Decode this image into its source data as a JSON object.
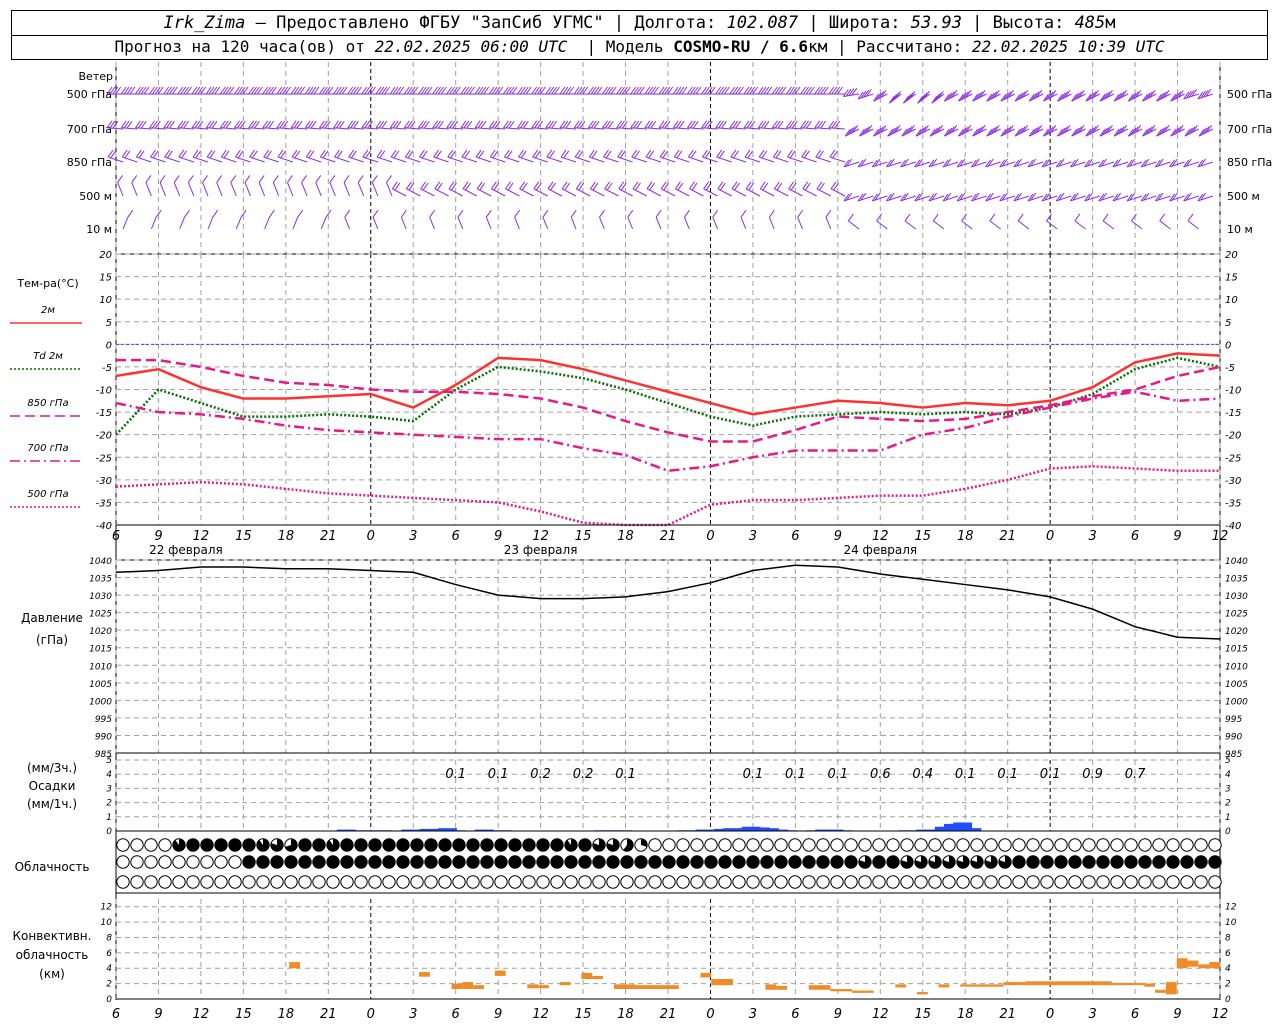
{
  "header": {
    "station": "Irk_Zima",
    "provider": "– Предоставлено ФГБУ \"ЗапСиб УГМС\"",
    "lon_label": "Долгота:",
    "lon_value": "102.087",
    "lat_label": "Широта:",
    "lat_value": "53.93",
    "alt_label": "Высота:",
    "alt_value": "485",
    "alt_unit": "м",
    "forecast_label": "Прогноз на 120 часа(ов) от",
    "forecast_start": "22.02.2025 06:00 UTC",
    "model_label": "Модель",
    "model_name": "COSMO-RU / 6.6",
    "model_unit": "км",
    "calc_label": "Рассчитано:",
    "calc_time": "22.02.2025 10:39 UTC"
  },
  "colors": {
    "wind": "#8a2be2",
    "t2m": "#ff3030",
    "td2m": "#007000",
    "t850": "#e6198a",
    "t700": "#e6198a",
    "t500": "#e6198a",
    "pressure": "#000000",
    "precip_bar": "#1f4fff",
    "conv_bar": "#f08c28",
    "grid": "#a0a0a0",
    "zero_line": "#4040ff"
  },
  "hour_ticks": [
    "6",
    "9",
    "12",
    "15",
    "18",
    "21",
    "0",
    "3",
    "6",
    "9",
    "12",
    "15",
    "18",
    "21",
    "0",
    "3",
    "6",
    "9",
    "12",
    "15",
    "18",
    "21",
    "0",
    "3",
    "6",
    "9",
    "12"
  ],
  "day_labels": [
    "22 февраля",
    "23 февраля",
    "24 февраля"
  ],
  "wind_panel": {
    "title": "Ветер",
    "levels": [
      "500 гПа",
      "700 гПа",
      "850 гПа",
      "500 м",
      "10 м"
    ]
  },
  "temp_panel": {
    "title": "Тем-ра(°C)",
    "legend": [
      {
        "label": "2м",
        "key": "t2m"
      },
      {
        "label": "Td 2м",
        "key": "td2m"
      },
      {
        "label": "850 гПа",
        "key": "t850"
      },
      {
        "label": "700 гПа",
        "key": "t700"
      },
      {
        "label": "500 гПа",
        "key": "t500"
      }
    ],
    "yticks": [
      "20",
      "15",
      "10",
      "5",
      "0",
      "-5",
      "-10",
      "-15",
      "-20",
      "-25",
      "-30",
      "-35",
      "-40"
    ]
  },
  "pressure_panel": {
    "title1": "Давление",
    "title2": "(гПа)",
    "yticks": [
      "1040",
      "1035",
      "1030",
      "1025",
      "1020",
      "1015",
      "1010",
      "1005",
      "1000",
      "995",
      "990",
      "985"
    ]
  },
  "precip_panel": {
    "title1": "(мм/3ч.)",
    "title2": "Осадки",
    "title3": "(мм/1ч.)",
    "yticks": [
      "5",
      "4",
      "3",
      "2",
      "1",
      "0"
    ]
  },
  "cloud_panel": {
    "title": "Облачность"
  },
  "conv_panel": {
    "title1": "Конвективн.",
    "title2": "облачность",
    "title3": "(км)",
    "yticks": [
      "12",
      "10",
      "8",
      "6",
      "4",
      "2",
      "0"
    ]
  },
  "chart_data": {
    "type": "line",
    "x_hours": [
      0,
      3,
      6,
      9,
      12,
      15,
      18,
      21,
      24,
      27,
      30,
      33,
      36,
      39,
      42,
      45,
      48,
      51,
      54,
      57,
      60,
      63,
      66,
      69,
      72,
      75,
      78
    ],
    "temperature": {
      "ylim": [
        -40,
        20
      ],
      "series": [
        {
          "name": "2м",
          "key": "t2m",
          "values": [
            -7,
            -5.5,
            -9.5,
            -12,
            -12,
            -11.5,
            -11,
            -14,
            -9,
            -3,
            -3.5,
            -5.5,
            -8,
            -10.5,
            -13,
            -15.5,
            -14,
            -12.5,
            -13,
            -14,
            -13,
            -13.5,
            -12.5,
            -9.5,
            -4,
            -2,
            -2.5
          ]
        },
        {
          "name": "Td 2м",
          "key": "td2m",
          "values": [
            -20,
            -10,
            -13,
            -16,
            -16,
            -15.5,
            -16,
            -17,
            -10,
            -5,
            -6,
            -7.5,
            -10,
            -13,
            -16,
            -18,
            -16,
            -15.5,
            -15,
            -15.5,
            -15,
            -15.5,
            -14,
            -11,
            -5.5,
            -3,
            -5
          ]
        },
        {
          "name": "850 гПа",
          "key": "t850",
          "values": [
            -3.5,
            -3.5,
            -5,
            -7,
            -8.5,
            -9,
            -10,
            -10.5,
            -10.5,
            -11,
            -12,
            -14,
            -17,
            -19.5,
            -21.5,
            -21.5,
            -19,
            -16,
            -16.5,
            -17,
            -16.5,
            -15,
            -13.5,
            -11.5,
            -10,
            -7,
            -5
          ]
        },
        {
          "name": "700 гПа",
          "key": "t700",
          "values": [
            -13,
            -15,
            -15.5,
            -16.5,
            -18,
            -19,
            -19.5,
            -20,
            -20.5,
            -21,
            -21,
            -23,
            -24.5,
            -28,
            -27,
            -25,
            -23.5,
            -23.5,
            -23.5,
            -20,
            -18.5,
            -16,
            -14,
            -12,
            -10.5,
            -12.5,
            -12
          ]
        },
        {
          "name": "500 гПа",
          "key": "t500",
          "values": [
            -31.5,
            -31,
            -30.5,
            -31,
            -32,
            -33,
            -33.5,
            -34,
            -34.5,
            -35,
            -37,
            -39.5,
            -41,
            -40,
            -35.5,
            -34.5,
            -34.5,
            -34,
            -33.5,
            -33.5,
            -32,
            -30,
            -27.5,
            -27,
            -27.5,
            -28,
            -28
          ]
        }
      ]
    },
    "pressure": {
      "ylim": [
        985,
        1040
      ],
      "series": [
        {
          "name": "Давление",
          "values": [
            1036.5,
            1037,
            1038,
            1038,
            1037.5,
            1037.5,
            1037,
            1036.5,
            1033,
            1030,
            1029,
            1029,
            1029.5,
            1031,
            1033.5,
            1037,
            1038.5,
            1038,
            1036,
            1034.5,
            1033,
            1031.5,
            1029.5,
            1026,
            1021,
            1018,
            1017.5
          ]
        }
      ]
    },
    "precip_3h_labels": [
      {
        "hour": 24,
        "value": "0.1"
      },
      {
        "hour": 27,
        "value": "0.1"
      },
      {
        "hour": 30,
        "value": "0.2"
      },
      {
        "hour": 33,
        "value": "0.2"
      },
      {
        "hour": 36,
        "value": "0.1"
      },
      {
        "hour": 45,
        "value": "0.1"
      },
      {
        "hour": 48,
        "value": "0.1"
      },
      {
        "hour": 51,
        "value": "0.1"
      },
      {
        "hour": 54,
        "value": "0.6"
      },
      {
        "hour": 57,
        "value": "0.4"
      },
      {
        "hour": 60,
        "value": "0.1"
      },
      {
        "hour": 63,
        "value": "0.1"
      },
      {
        "hour": 66,
        "value": "0.1"
      },
      {
        "hour": 69,
        "value": "0.9"
      },
      {
        "hour": 72,
        "value": "0.7"
      }
    ],
    "precip_1h": {
      "ylim": [
        0,
        5
      ],
      "values": [
        0,
        0,
        0,
        0,
        0,
        0,
        0,
        0,
        0,
        0,
        0,
        0,
        0,
        0,
        0,
        0,
        0,
        0,
        0,
        0,
        0,
        0,
        0,
        0,
        0.1,
        0.1,
        0.05,
        0.05,
        0.05,
        0.05,
        0,
        0.1,
        0.1,
        0.15,
        0.15,
        0.2,
        0.2,
        0.05,
        0,
        0.1,
        0.1,
        0.05,
        0.05,
        0,
        0,
        0,
        0,
        0,
        0,
        0,
        0,
        0,
        0.05,
        0.05,
        0.05,
        0.05,
        0,
        0,
        0,
        0,
        0,
        0.05,
        0.05,
        0.1,
        0.1,
        0.15,
        0.2,
        0.2,
        0.3,
        0.3,
        0.25,
        0.2,
        0.1,
        0.05,
        0,
        0.05,
        0.1,
        0.1,
        0.1,
        0.05,
        0,
        0,
        0,
        0,
        0,
        0.05,
        0.05,
        0.1,
        0.1,
        0.3,
        0.5,
        0.6,
        0.6,
        0.2,
        0,
        0,
        0,
        0,
        0,
        0,
        0,
        0,
        0,
        0,
        0,
        0,
        0,
        0,
        0,
        0,
        0,
        0,
        0,
        0,
        0,
        0,
        0,
        0,
        0,
        0,
        0
      ]
    },
    "clouds": {
      "rows": [
        "high",
        "mid",
        "low"
      ],
      "cover_high": [
        0,
        0,
        0,
        0,
        0.9,
        1,
        1,
        1,
        1,
        1,
        0.9,
        0.8,
        0.7,
        1,
        1,
        0.9,
        1,
        1,
        1,
        1,
        1,
        1,
        1,
        1,
        1,
        1,
        1,
        1,
        1,
        1,
        1,
        1,
        0.9,
        1,
        0.8,
        0.8,
        0.6,
        0.3,
        0,
        0,
        0,
        0,
        0,
        0,
        0,
        0,
        0,
        0,
        0,
        0,
        0,
        0,
        0,
        0,
        0,
        0,
        0,
        0,
        0,
        0,
        0,
        0,
        0,
        0,
        0,
        0,
        0,
        0,
        0,
        0,
        0,
        0,
        0,
        0,
        0,
        0,
        0,
        0,
        0,
        0,
        0
      ],
      "cover_mid": [
        0,
        0,
        0,
        0,
        0,
        0,
        0,
        0,
        0,
        1,
        1,
        1,
        1,
        1,
        1,
        1,
        1,
        1,
        1,
        1,
        1,
        1,
        1,
        1,
        1,
        1,
        1,
        1,
        1,
        1,
        1,
        1,
        1,
        1,
        1,
        1,
        1,
        1,
        1,
        1,
        1,
        1,
        1,
        1,
        1,
        1,
        1,
        1,
        1,
        1,
        1,
        1,
        1,
        0.8,
        1,
        1,
        0.8,
        0.8,
        0.8,
        0.8,
        0.8,
        0.8,
        0.8,
        0.8,
        1,
        1,
        1,
        1,
        1,
        1,
        1,
        1,
        1,
        1,
        1,
        1,
        1,
        1,
        1,
        1,
        1
      ],
      "cover_low": [
        0,
        0,
        0,
        0,
        0,
        0,
        0,
        0,
        0,
        0,
        0,
        0,
        0,
        0,
        0,
        0,
        0,
        0,
        0,
        0,
        0,
        0,
        0,
        0,
        0,
        0,
        0,
        0,
        0,
        0,
        0,
        0,
        0,
        0,
        0,
        0,
        0,
        0,
        0,
        0,
        0,
        0,
        0,
        0,
        0,
        0,
        0,
        0,
        0,
        0,
        0,
        0,
        0,
        0,
        0,
        0,
        0,
        0,
        0,
        0,
        0,
        0,
        0,
        0,
        0,
        0,
        0,
        0,
        0,
        0,
        0,
        0,
        0,
        0,
        0,
        0,
        0,
        0,
        0,
        0,
        0
      ]
    },
    "convective": {
      "ylim": [
        0,
        13
      ],
      "bars": [
        {
          "h0": 16,
          "h1": 17,
          "bot": 4,
          "top": 4.8
        },
        {
          "h0": 28,
          "h1": 29,
          "bot": 2.9,
          "top": 3.5
        },
        {
          "h0": 31,
          "h1": 32,
          "bot": 1.3,
          "top": 2
        },
        {
          "h0": 32,
          "h1": 33,
          "bot": 1.3,
          "top": 2.2
        },
        {
          "h0": 33,
          "h1": 34,
          "bot": 1.3,
          "top": 1.8
        },
        {
          "h0": 35,
          "h1": 36,
          "bot": 3,
          "top": 3.7
        },
        {
          "h0": 38,
          "h1": 39,
          "bot": 1.4,
          "top": 1.9
        },
        {
          "h0": 39,
          "h1": 40,
          "bot": 1.4,
          "top": 1.8
        },
        {
          "h0": 41,
          "h1": 42,
          "bot": 1.8,
          "top": 2.2
        },
        {
          "h0": 43,
          "h1": 44,
          "bot": 2.6,
          "top": 3.4
        },
        {
          "h0": 44,
          "h1": 45,
          "bot": 2.6,
          "top": 3
        },
        {
          "h0": 46,
          "h1": 48,
          "bot": 1.3,
          "top": 1.9
        },
        {
          "h0": 48,
          "h1": 51,
          "bot": 1.3,
          "top": 1.8
        },
        {
          "h0": 51,
          "h1": 52,
          "bot": 1.3,
          "top": 1.8
        },
        {
          "h0": 54,
          "h1": 55,
          "bot": 2.8,
          "top": 3.4
        },
        {
          "h0": 55,
          "h1": 57,
          "bot": 1.8,
          "top": 2.6
        },
        {
          "h0": 60,
          "h1": 61,
          "bot": 1.2,
          "top": 1.9
        },
        {
          "h0": 61,
          "h1": 62,
          "bot": 1.2,
          "top": 1.7
        },
        {
          "h0": 64,
          "h1": 66,
          "bot": 1.2,
          "top": 1.8
        },
        {
          "h0": 66,
          "h1": 68,
          "bot": 1,
          "top": 1.3
        },
        {
          "h0": 68,
          "h1": 70,
          "bot": 0.8,
          "top": 1.1
        },
        {
          "h0": 72,
          "h1": 73,
          "bot": 1.5,
          "top": 1.9
        },
        {
          "h0": 74,
          "h1": 75,
          "bot": 0.6,
          "top": 0.9
        },
        {
          "h0": 76,
          "h1": 77,
          "bot": 1.5,
          "top": 1.9
        },
        {
          "h0": 78,
          "h1": 82,
          "bot": 1.6,
          "top": 1.9
        },
        {
          "h0": 82,
          "h1": 84,
          "bot": 1.8,
          "top": 2.2
        },
        {
          "h0": 84,
          "h1": 90,
          "bot": 1.8,
          "top": 2.3
        },
        {
          "h0": 90,
          "h1": 92,
          "bot": 1.8,
          "top": 2.3
        },
        {
          "h0": 92,
          "h1": 95,
          "bot": 1.8,
          "top": 2.1
        },
        {
          "h0": 95,
          "h1": 96,
          "bot": 1.6,
          "top": 2
        },
        {
          "h0": 96,
          "h1": 97,
          "bot": 0.8,
          "top": 1.2
        },
        {
          "h0": 97,
          "h1": 98,
          "bot": 0.6,
          "top": 2.2
        },
        {
          "h0": 98,
          "h1": 99,
          "bot": 4,
          "top": 5.3
        },
        {
          "h0": 99,
          "h1": 100,
          "bot": 4.2,
          "top": 5
        },
        {
          "h0": 100,
          "h1": 101,
          "bot": 4,
          "top": 4.5
        },
        {
          "h0": 101,
          "h1": 102,
          "bot": 4,
          "top": 4.8
        }
      ]
    },
    "wind": {
      "note_levels": [
        "500 гПа",
        "700 гПа",
        "850 гПа",
        "500 м",
        "10 м"
      ],
      "dir_500": [
        270,
        270,
        270,
        270,
        270,
        270,
        270,
        270,
        270,
        270,
        270,
        270,
        270,
        270,
        270,
        270,
        270,
        270,
        270,
        270,
        270,
        270,
        270,
        270,
        270,
        270,
        270,
        270,
        270,
        270,
        270,
        270,
        270,
        270,
        270,
        270,
        270,
        270,
        270,
        270,
        270,
        270,
        270,
        270,
        270,
        270,
        270,
        270,
        270,
        270,
        270,
        270,
        280,
        290,
        300,
        310,
        310,
        310,
        310,
        300,
        300,
        300,
        300,
        300,
        300,
        300,
        300,
        300,
        300,
        300,
        300,
        300,
        300,
        300,
        300,
        300,
        290,
        290,
        290,
        290,
        290
      ],
      "speed_500": [
        35,
        35,
        35,
        35,
        35,
        35,
        35,
        35,
        35,
        35,
        35,
        35,
        35,
        35,
        35,
        35,
        35,
        35,
        35,
        35,
        35,
        35,
        35,
        35,
        35,
        35,
        35,
        35,
        35,
        35,
        35,
        35,
        35,
        35,
        35,
        35,
        35,
        35,
        35,
        35,
        35,
        35,
        35,
        35,
        35,
        35,
        35,
        35,
        35,
        35,
        35,
        35,
        30,
        30,
        30,
        30,
        30,
        30,
        30,
        30,
        30,
        30,
        30,
        30,
        30,
        30,
        30,
        30,
        30,
        30,
        30,
        30,
        30,
        30,
        30,
        30,
        30,
        30,
        30,
        30,
        30
      ]
    }
  }
}
